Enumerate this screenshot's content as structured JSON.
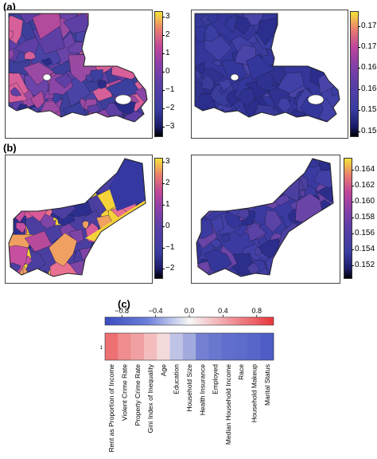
{
  "panels": {
    "a": "(a)",
    "b": "(b)",
    "c": "(c)"
  },
  "colorbars": {
    "a_left": {
      "min": -3.5,
      "max": 3.3,
      "ticks": [
        "3",
        "2",
        "1",
        "0",
        "−1",
        "−2",
        "−3"
      ],
      "tick_values": [
        3,
        2,
        1,
        0,
        -1,
        -2,
        -3
      ]
    },
    "a_right": {
      "min": 0.149,
      "max": 0.1785,
      "ticks": [
        "0.175",
        "0.170",
        "0.165",
        "0.160",
        "0.155",
        "0.150"
      ],
      "tick_values": [
        0.175,
        0.17,
        0.165,
        0.16,
        0.155,
        0.15
      ]
    },
    "b_left": {
      "min": -2.4,
      "max": 3.2,
      "ticks": [
        "3",
        "2",
        "1",
        "0",
        "−1",
        "−2"
      ],
      "tick_values": [
        3,
        2,
        1,
        0,
        -1,
        -2
      ]
    },
    "b_right": {
      "min": 0.1505,
      "max": 0.1655,
      "ticks": [
        "0.164",
        "0.162",
        "0.160",
        "0.158",
        "0.156",
        "0.154",
        "0.152"
      ],
      "tick_values": [
        0.164,
        0.162,
        0.16,
        0.158,
        0.156,
        0.154,
        0.152
      ]
    }
  },
  "colors": {
    "viridis_low": "#000004",
    "plasma_mid": "#3c3fa0",
    "accent_pink": "#e05a9c",
    "accent_yellow": "#f5e03a",
    "corr_neg": "#3b4cc0",
    "corr_pos": "#e8363a"
  },
  "chart_data": {
    "type": "heatmap",
    "title": "",
    "scale_ticks": [
      "−0.8",
      "−0.4",
      "0.0",
      "0.4",
      "0.8"
    ],
    "scale_tick_values": [
      -0.8,
      -0.4,
      0.0,
      0.4,
      0.8
    ],
    "scale_range": [
      -1,
      1
    ],
    "row_labels": [
      "1"
    ],
    "categories": [
      "Rent as Proportion of Income",
      "Violent Crime Rate",
      "Property Crime Rate",
      "Gini Index of Inequality",
      "Age",
      "Education",
      "Household Size",
      "Health Insurance",
      "Employed",
      "Median Household Income",
      "Race",
      "Household Makeup",
      "Marital Status"
    ],
    "values": [
      0.7,
      0.55,
      0.45,
      0.3,
      0.15,
      -0.3,
      -0.45,
      -0.7,
      -0.75,
      -0.8,
      -0.82,
      -0.85,
      -0.9
    ]
  }
}
